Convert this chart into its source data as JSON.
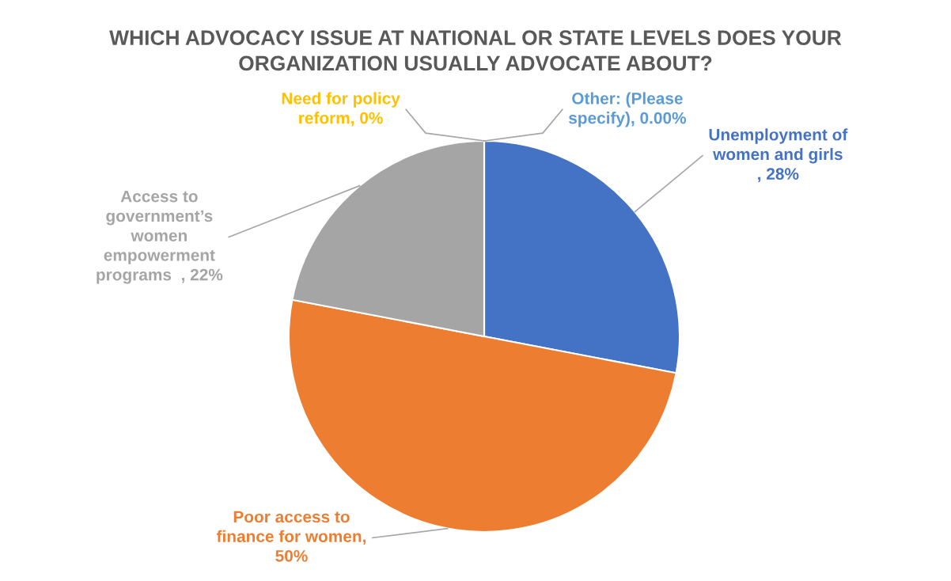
{
  "chart_data": {
    "type": "pie",
    "title": "WHICH ADVOCACY ISSUE AT NATIONAL OR STATE LEVELS DOES YOUR\nORGANIZATION USUALLY ADVOCATE ABOUT?",
    "categories": [
      "Unemployment of\nwomen and girls\n",
      "Poor access to\nfinance for women",
      "Access to\ngovernment’s\nwomen\nempowerment\nprograms  ",
      "Need for policy\nreform",
      "Other: (Please\nspecify)"
    ],
    "values": [
      28,
      50,
      22,
      0,
      0
    ],
    "value_labels": [
      ", 28%",
      ",\n50%",
      ", 22%",
      ", 0%",
      ", 0.00%"
    ],
    "colors": [
      "#4472c4",
      "#ed7d31",
      "#a5a5a5",
      "#ffc000",
      "#5b9bd5"
    ],
    "legend": false
  }
}
